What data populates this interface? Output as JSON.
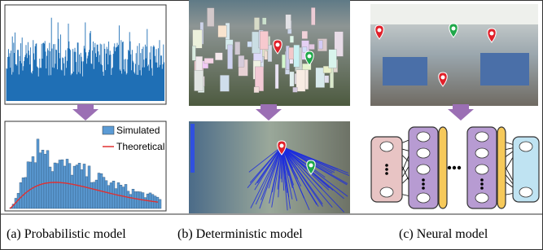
{
  "panels": [
    {
      "caption": "(a) Probabilistic model",
      "legend": [
        "Simulated",
        "Theoretical"
      ]
    },
    {
      "caption": "(b) Deterministic model"
    },
    {
      "caption": "(c) Neural model"
    }
  ]
}
